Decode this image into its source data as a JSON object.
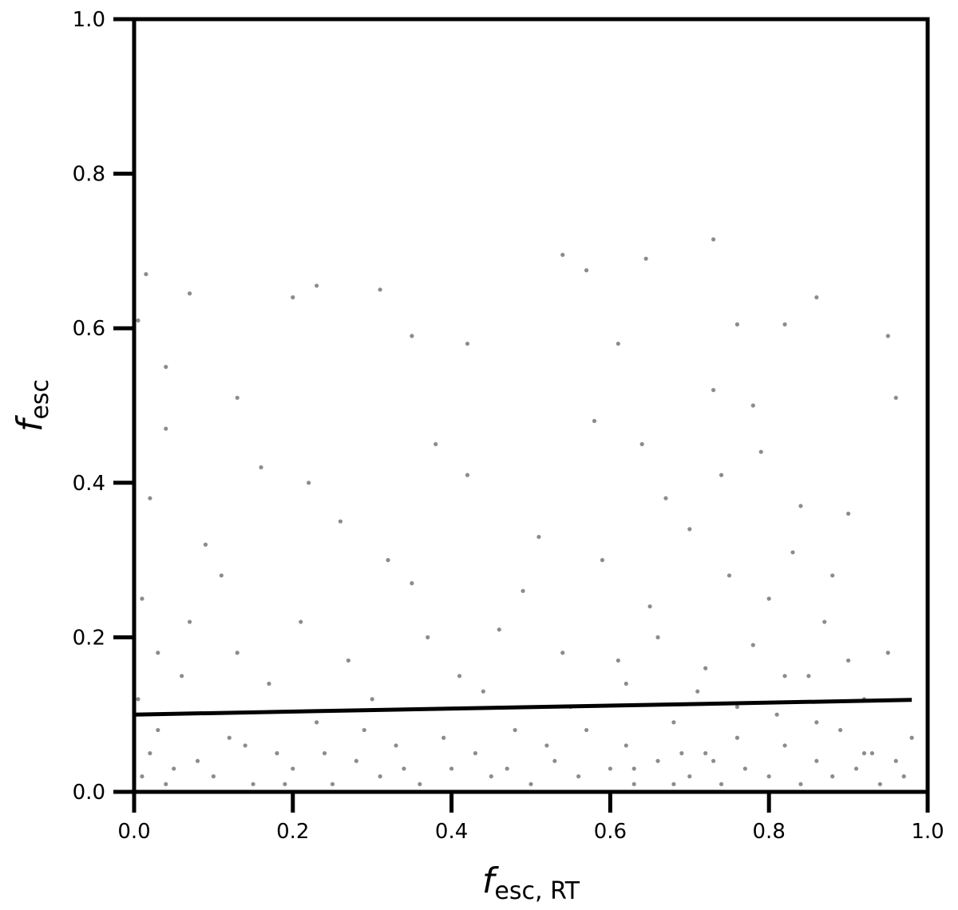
{
  "chart_data": {
    "type": "scatter",
    "xlabel": {
      "symbol": "f",
      "subscript": "esc, RT"
    },
    "ylabel": {
      "symbol": "f",
      "subscript": "esc"
    },
    "xlim": [
      0,
      1
    ],
    "ylim": [
      0,
      1
    ],
    "xticks": [
      {
        "value": 0,
        "label": "0.0"
      },
      0.2,
      0.4,
      0.6,
      0.8,
      {
        "value": 1,
        "label": "1.0"
      }
    ],
    "yticks": [
      {
        "value": 0,
        "label": "0.0"
      },
      0.2,
      0.4,
      0.6,
      0.8,
      {
        "value": 1,
        "label": "1.0"
      }
    ],
    "grid": false,
    "series": [
      {
        "type": "scatter",
        "color": "#8c8c8c",
        "x": [
          0.01,
          0.02,
          0.005,
          0.01,
          0.03,
          0.04,
          0.05,
          0.06,
          0.08,
          0.09,
          0.1,
          0.12,
          0.13,
          0.15,
          0.16,
          0.18,
          0.2,
          0.21,
          0.23,
          0.25,
          0.26,
          0.28,
          0.3,
          0.31,
          0.33,
          0.35,
          0.36,
          0.38,
          0.4,
          0.41,
          0.43,
          0.45,
          0.46,
          0.48,
          0.5,
          0.51,
          0.53,
          0.55,
          0.56,
          0.58,
          0.6,
          0.61,
          0.62,
          0.63,
          0.65,
          0.66,
          0.67,
          0.68,
          0.7,
          0.71,
          0.72,
          0.73,
          0.74,
          0.75,
          0.76,
          0.77,
          0.78,
          0.79,
          0.8,
          0.81,
          0.82,
          0.83,
          0.84,
          0.85,
          0.86,
          0.87,
          0.88,
          0.89,
          0.9,
          0.91,
          0.92,
          0.93,
          0.94,
          0.95,
          0.96,
          0.97,
          0.98,
          0.02,
          0.03,
          0.04,
          0.07,
          0.11,
          0.14,
          0.17,
          0.19,
          0.22,
          0.24,
          0.27,
          0.29,
          0.32,
          0.34,
          0.37,
          0.39,
          0.42,
          0.44,
          0.47,
          0.49,
          0.52,
          0.54,
          0.57,
          0.59,
          0.62,
          0.64,
          0.66,
          0.69,
          0.7,
          0.72,
          0.74,
          0.76,
          0.78,
          0.8,
          0.82,
          0.84,
          0.86,
          0.88,
          0.9,
          0.92,
          0.63,
          0.68,
          0.73,
          0.015,
          0.07,
          0.2,
          0.23,
          0.31,
          0.54,
          0.57,
          0.645,
          0.73,
          0.86,
          0.95,
          0.96,
          0.82,
          0.76,
          0.005,
          0.04,
          0.13,
          0.35,
          0.42,
          0.61
        ],
        "values": [
          0.02,
          0.05,
          0.12,
          0.25,
          0.08,
          0.01,
          0.03,
          0.15,
          0.04,
          0.32,
          0.02,
          0.07,
          0.18,
          0.01,
          0.42,
          0.05,
          0.03,
          0.22,
          0.09,
          0.01,
          0.35,
          0.04,
          0.12,
          0.02,
          0.06,
          0.27,
          0.01,
          0.45,
          0.03,
          0.15,
          0.05,
          0.02,
          0.21,
          0.08,
          0.01,
          0.33,
          0.04,
          0.11,
          0.02,
          0.48,
          0.03,
          0.17,
          0.06,
          0.01,
          0.24,
          0.04,
          0.38,
          0.09,
          0.02,
          0.13,
          0.05,
          0.52,
          0.01,
          0.28,
          0.07,
          0.03,
          0.19,
          0.44,
          0.02,
          0.1,
          0.06,
          0.31,
          0.01,
          0.15,
          0.04,
          0.22,
          0.02,
          0.08,
          0.36,
          0.03,
          0.12,
          0.05,
          0.01,
          0.18,
          0.04,
          0.02,
          0.07,
          0.38,
          0.18,
          0.47,
          0.22,
          0.28,
          0.06,
          0.14,
          0.01,
          0.4,
          0.05,
          0.17,
          0.08,
          0.3,
          0.03,
          0.2,
          0.07,
          0.41,
          0.13,
          0.03,
          0.26,
          0.06,
          0.18,
          0.08,
          0.3,
          0.14,
          0.45,
          0.2,
          0.05,
          0.34,
          0.16,
          0.41,
          0.11,
          0.5,
          0.25,
          0.15,
          0.37,
          0.09,
          0.28,
          0.17,
          0.05,
          0.03,
          0.01,
          0.04,
          0.67,
          0.645,
          0.64,
          0.655,
          0.65,
          0.695,
          0.675,
          0.69,
          0.715,
          0.64,
          0.59,
          0.51,
          0.605,
          0.605,
          0.61,
          0.55,
          0.51,
          0.59,
          0.58,
          0.58
        ]
      },
      {
        "type": "line",
        "color": "#000000",
        "x": [
          0,
          0.98
        ],
        "values": [
          0.1,
          0.119
        ]
      }
    ]
  }
}
